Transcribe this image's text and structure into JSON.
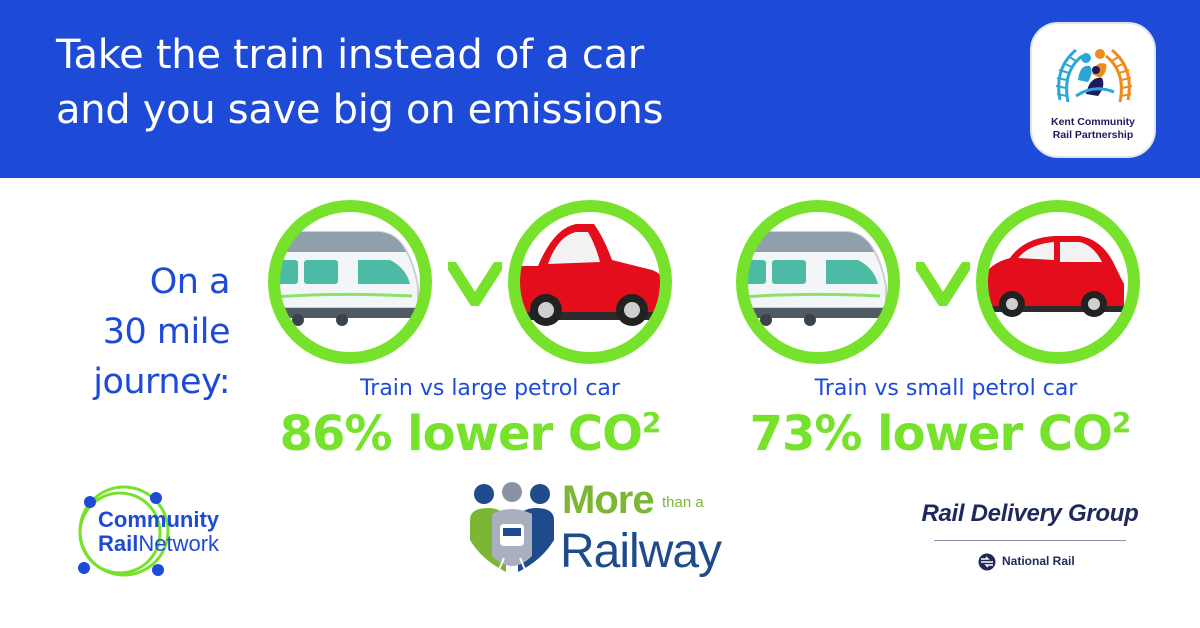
{
  "header": {
    "title_line1": "Take the train instead of a car",
    "title_line2": "and you save big on emissions",
    "background": "#1d4bd8"
  },
  "partner_badge": {
    "line1": "Kent Community",
    "line2": "Rail Partnership"
  },
  "journey": {
    "line1": "On a",
    "line2": "30 mile",
    "line3": "journey:"
  },
  "comparisons": [
    {
      "title": "Train vs large petrol car",
      "result": "86% lower CO",
      "superscript": "2",
      "left_icon": "train-icon",
      "right_icon": "large-car-icon"
    },
    {
      "title": "Train vs small petrol car",
      "result": "73% lower CO",
      "superscript": "2",
      "left_icon": "train-icon",
      "right_icon": "small-car-icon"
    }
  ],
  "versus_mark": "v",
  "footer": {
    "crn_line1": "Community",
    "crn_line2_bold": "Rail",
    "crn_line2_rest": "Network",
    "mtar_more": "More",
    "mtar_than": "than a",
    "mtar_railway": "Railway",
    "rdg_name": "Rail Delivery Group",
    "rdg_sub": "National Rail"
  },
  "colors": {
    "brand_blue": "#1d4bd8",
    "accent_green": "#77e22c",
    "car_red": "#e30d1b",
    "train_teal": "#4dbba3",
    "rdg_navy": "#21295b"
  }
}
